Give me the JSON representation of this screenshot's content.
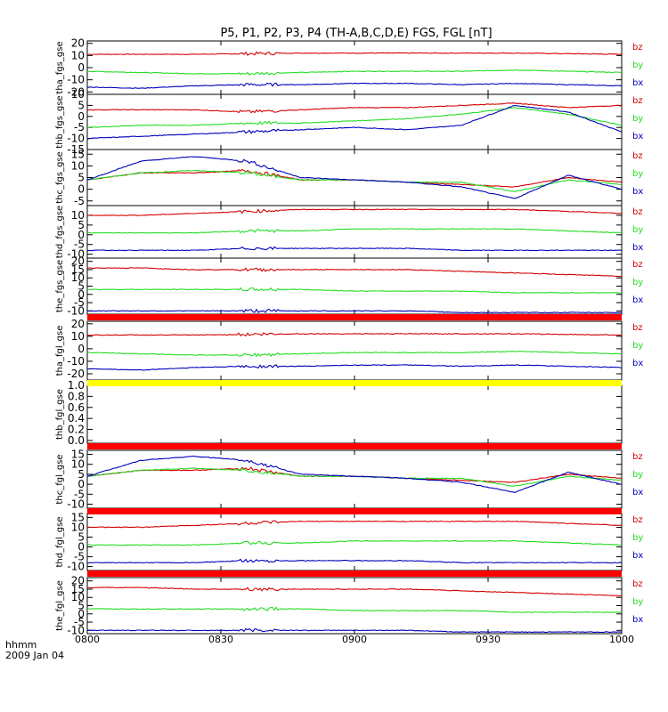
{
  "title": "P5, P1, P2, P3, P4 (TH-A,B,C,D,E) FGS, FGL [nT]",
  "footer": {
    "line1": "hhmm",
    "line2": "2009 Jan 04"
  },
  "colors": {
    "bz": "#d40000",
    "by": "#22dd22",
    "bx": "#0000bb",
    "red_bar": "#ff0000",
    "yellow_bar": "#ffff00"
  },
  "chart_data": {
    "type": "line",
    "x_ticks": [
      "0800",
      "0830",
      "0900",
      "0930",
      "1000"
    ],
    "panels": [
      {
        "ylabel": "tha_fgs_gse",
        "yticks": [
          "20",
          "10",
          "0",
          "-10",
          "-20"
        ],
        "ylim": [
          -22,
          22
        ],
        "series": [
          {
            "name": "bz",
            "values": [
              11,
              11,
              11,
              11.5,
              12,
              12,
              12,
              12,
              12,
              11.5,
              11
            ]
          },
          {
            "name": "by",
            "values": [
              -3,
              -4,
              -5,
              -5,
              -4,
              -3,
              -3,
              -3,
              -2,
              -3,
              -4
            ]
          },
          {
            "name": "bx",
            "values": [
              -16,
              -17,
              -15,
              -14,
              -14,
              -13,
              -13,
              -14,
              -13,
              -14,
              -15
            ]
          }
        ],
        "legend": [
          "bz",
          "by",
          "bx"
        ]
      },
      {
        "ylabel": "thb_fgs_gse",
        "yticks": [
          "10",
          "5",
          "0",
          "-5",
          "-10",
          "-15"
        ],
        "ylim": [
          -15,
          10
        ],
        "series": [
          {
            "name": "bz",
            "values": [
              3,
              3,
              3,
              2,
              3,
              4,
              4,
              5,
              6,
              4,
              5
            ]
          },
          {
            "name": "by",
            "values": [
              -5,
              -4,
              -4,
              -3,
              -3,
              -2,
              -1,
              1,
              4,
              1,
              -4
            ]
          },
          {
            "name": "bx",
            "values": [
              -10,
              -9,
              -8,
              -7,
              -6,
              -5,
              -6,
              -4,
              5,
              2,
              -7
            ]
          }
        ],
        "legend": [
          "bz",
          "by",
          "bx"
        ]
      },
      {
        "ylabel": "thc_fgs_gse",
        "yticks": [
          "15",
          "10",
          "5",
          "0",
          "-5"
        ],
        "ylim": [
          -7,
          17
        ],
        "series": [
          {
            "name": "bz",
            "values": [
              4,
              7,
              7,
              8,
              4,
              4,
              3,
              2,
              1,
              5,
              3
            ]
          },
          {
            "name": "by",
            "values": [
              4,
              7,
              8,
              7,
              4,
              4,
              3,
              3,
              -1,
              4,
              2
            ]
          },
          {
            "name": "bx",
            "values": [
              4,
              12,
              14,
              12,
              5,
              4,
              3,
              1,
              -4,
              6,
              0
            ]
          }
        ],
        "legend": [
          "bz",
          "by",
          "bx"
        ]
      },
      {
        "ylabel": "thd_fgs_gse",
        "yticks": [
          "10",
          "5",
          "0",
          "-5",
          "-10"
        ],
        "ylim": [
          -12,
          15
        ],
        "series": [
          {
            "name": "bz",
            "values": [
              10,
              10,
              11,
              12,
              13,
              13,
              13,
              13,
              13,
              12,
              11
            ]
          },
          {
            "name": "by",
            "values": [
              1,
              1,
              1,
              2,
              2,
              3,
              3,
              3,
              3,
              2,
              1
            ]
          },
          {
            "name": "bx",
            "values": [
              -8,
              -8,
              -8,
              -7,
              -7,
              -7,
              -7,
              -8,
              -8,
              -8,
              -8
            ]
          }
        ],
        "legend": [
          "bz",
          "by",
          "bx"
        ]
      },
      {
        "ylabel": "the_fgs_gse",
        "yticks": [
          "20",
          "15",
          "10",
          "5",
          "0",
          "-5",
          "-10"
        ],
        "ylim": [
          -12,
          22
        ],
        "series": [
          {
            "name": "bz",
            "values": [
              16,
              16,
              15,
              15,
              15,
              15,
              15,
              14,
              13,
              12,
              11
            ]
          },
          {
            "name": "by",
            "values": [
              3,
              3,
              3,
              3,
              3,
              2,
              2,
              2,
              1,
              1,
              1
            ]
          },
          {
            "name": "bx",
            "values": [
              -10,
              -10,
              -10,
              -10,
              -10,
              -10,
              -10,
              -11,
              -11,
              -11,
              -11
            ]
          }
        ],
        "legend": [
          "bz",
          "by",
          "bx"
        ]
      },
      {
        "ylabel": "tha_fgl_gse",
        "yticks": [
          "20",
          "10",
          "0",
          "-10",
          "-20"
        ],
        "ylim": [
          -25,
          22
        ],
        "series": [
          {
            "name": "bz",
            "values": [
              11,
              11,
              11,
              11.5,
              12,
              12,
              12,
              12,
              12,
              11.5,
              11
            ]
          },
          {
            "name": "by",
            "values": [
              -3,
              -4,
              -5,
              -5,
              -4,
              -3,
              -3,
              -3,
              -2,
              -3,
              -4
            ]
          },
          {
            "name": "bx",
            "values": [
              -16,
              -17,
              -15,
              -14,
              -14,
              -13,
              -13,
              -14,
              -13,
              -14,
              -15
            ]
          }
        ],
        "legend": [
          "bz",
          "by",
          "bx"
        ]
      },
      {
        "ylabel": "thb_fgl_gse",
        "yticks": [
          "1.0",
          "0.8",
          "0.6",
          "0.4",
          "0.2",
          "0.0"
        ],
        "ylim": [
          -0.05,
          1.0
        ],
        "series": [],
        "legend": []
      },
      {
        "ylabel": "thc_fgl_gse",
        "yticks": [
          "15",
          "10",
          "5",
          "0",
          "-5",
          "-10"
        ],
        "ylim": [
          -12,
          17
        ],
        "series": [
          {
            "name": "bz",
            "values": [
              4,
              7,
              7,
              8,
              4,
              4,
              3,
              2,
              1,
              5,
              3
            ]
          },
          {
            "name": "by",
            "values": [
              4,
              7,
              8,
              7,
              4,
              4,
              3,
              3,
              -1,
              4,
              2
            ]
          },
          {
            "name": "bx",
            "values": [
              4,
              12,
              14,
              12,
              5,
              4,
              3,
              1,
              -4,
              6,
              0
            ]
          }
        ],
        "legend": [
          "bz",
          "by",
          "bx"
        ]
      },
      {
        "ylabel": "thd_fgl_gse",
        "yticks": [
          "15",
          "10",
          "5",
          "0",
          "-5",
          "-10"
        ],
        "ylim": [
          -12,
          17
        ],
        "series": [
          {
            "name": "bz",
            "values": [
              10,
              10,
              11,
              12,
              13,
              13,
              13,
              13,
              13,
              12,
              11
            ]
          },
          {
            "name": "by",
            "values": [
              1,
              1,
              1,
              2,
              2,
              3,
              3,
              3,
              3,
              2,
              1
            ]
          },
          {
            "name": "bx",
            "values": [
              -8,
              -8,
              -8,
              -7,
              -7,
              -7,
              -7,
              -8,
              -8,
              -8,
              -8
            ]
          }
        ],
        "legend": [
          "bz",
          "by",
          "bx"
        ]
      },
      {
        "ylabel": "the_fgl_gse",
        "yticks": [
          "20",
          "15",
          "10",
          "5",
          "0",
          "-5",
          "-10"
        ],
        "ylim": [
          -12,
          22
        ],
        "series": [
          {
            "name": "bz",
            "values": [
              16,
              16,
              15,
              15,
              15,
              15,
              15,
              14,
              13,
              12,
              11
            ]
          },
          {
            "name": "by",
            "values": [
              3,
              3,
              3,
              3,
              3,
              2,
              2,
              2,
              1,
              1,
              1
            ]
          },
          {
            "name": "bx",
            "values": [
              -10,
              -10,
              -10,
              -10,
              -10,
              -10,
              -10,
              -11,
              -11,
              -11,
              -11
            ]
          }
        ],
        "legend": [
          "bz",
          "by",
          "bx"
        ]
      }
    ],
    "bars": [
      {
        "after_panel": 4,
        "color": "red"
      },
      {
        "after_panel": 5,
        "color": "yellow"
      },
      {
        "after_panel": 6,
        "color": "red"
      },
      {
        "after_panel": 7,
        "color": "red"
      },
      {
        "after_panel": 8,
        "color": "red"
      }
    ]
  }
}
